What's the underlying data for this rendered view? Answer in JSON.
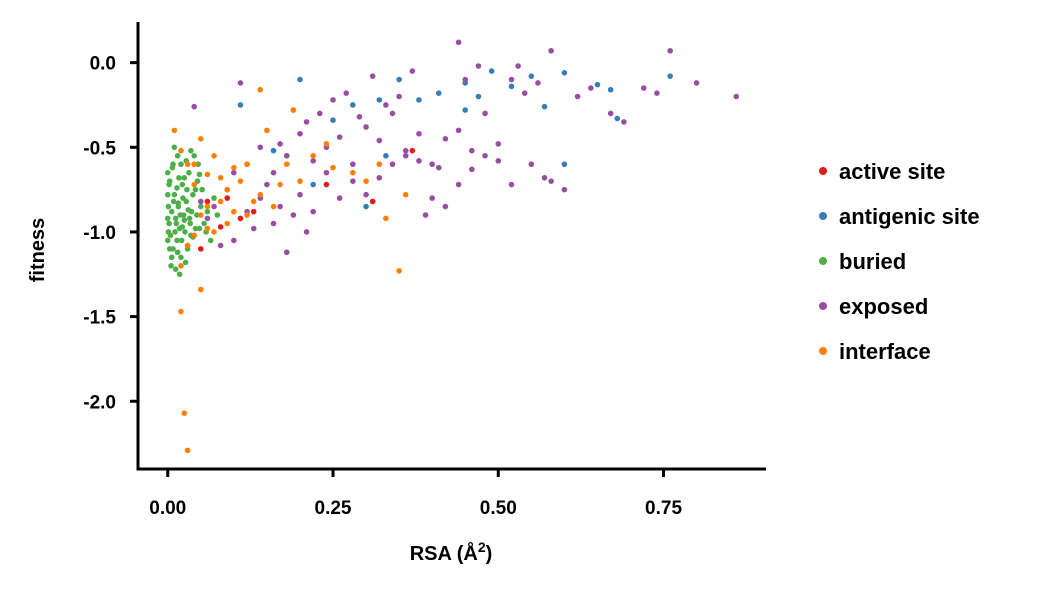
{
  "chart_data": {
    "type": "scatter",
    "xlabel": "RSA (Å",
    "xlabel_sup": "2",
    "xlabel_close": ")",
    "ylabel": "fitness",
    "xlim": [
      -0.045,
      0.905
    ],
    "ylim": [
      -2.4,
      0.24
    ],
    "xticks": [
      0.0,
      0.25,
      0.5,
      0.75
    ],
    "xtick_labels": [
      "0.00",
      "0.25",
      "0.50",
      "0.75"
    ],
    "yticks": [
      0.0,
      -0.5,
      -1.0,
      -1.5,
      -2.0
    ],
    "ytick_labels": [
      "0.0",
      "-0.5",
      "-1.0",
      "-1.5",
      "-2.0"
    ],
    "grid": false,
    "legend_position": "right",
    "series": [
      {
        "name": "active site",
        "color": "#e41a1c",
        "points": [
          [
            0.37,
            -0.52
          ],
          [
            0.31,
            -0.82
          ],
          [
            0.24,
            -0.72
          ],
          [
            0.05,
            -1.1
          ],
          [
            0.08,
            -0.97
          ],
          [
            0.06,
            -0.82
          ],
          [
            0.13,
            -0.88
          ],
          [
            0.11,
            -0.92
          ],
          [
            0.09,
            -0.8
          ]
        ]
      },
      {
        "name": "antigenic site",
        "color": "#377eb8",
        "points": [
          [
            0.11,
            -0.25
          ],
          [
            0.16,
            -0.52
          ],
          [
            0.22,
            -0.72
          ],
          [
            0.25,
            -0.34
          ],
          [
            0.28,
            -0.25
          ],
          [
            0.32,
            -0.22
          ],
          [
            0.35,
            -0.1
          ],
          [
            0.38,
            -0.22
          ],
          [
            0.41,
            -0.18
          ],
          [
            0.45,
            -0.12
          ],
          [
            0.47,
            -0.2
          ],
          [
            0.49,
            -0.05
          ],
          [
            0.52,
            -0.14
          ],
          [
            0.55,
            -0.08
          ],
          [
            0.57,
            -0.26
          ],
          [
            0.6,
            -0.06
          ],
          [
            0.65,
            -0.13
          ],
          [
            0.67,
            -0.16
          ],
          [
            0.68,
            -0.33
          ],
          [
            0.76,
            -0.08
          ],
          [
            0.3,
            -0.85
          ],
          [
            0.33,
            -0.55
          ],
          [
            0.6,
            -0.6
          ],
          [
            0.45,
            -0.28
          ],
          [
            0.2,
            -0.1
          ]
        ]
      },
      {
        "name": "buried",
        "color": "#4daf4a",
        "points": [
          [
            0.002,
            -0.95
          ],
          [
            0.004,
            -1.02
          ],
          [
            0.006,
            -0.88
          ],
          [
            0.008,
            -1.1
          ],
          [
            0.01,
            -0.78
          ],
          [
            0.012,
            -0.92
          ],
          [
            0.014,
            -1.05
          ],
          [
            0.016,
            -0.85
          ],
          [
            0.018,
            -0.98
          ],
          [
            0.02,
            -1.15
          ],
          [
            0.022,
            -0.72
          ],
          [
            0.024,
            -0.9
          ],
          [
            0.026,
            -1.0
          ],
          [
            0.028,
            -0.82
          ],
          [
            0.03,
            -1.08
          ],
          [
            0.032,
            -0.65
          ],
          [
            0.034,
            -0.95
          ],
          [
            0.036,
            -0.88
          ],
          [
            0.038,
            -1.03
          ],
          [
            0.04,
            -0.55
          ],
          [
            0.042,
            -0.75
          ],
          [
            0.044,
            -0.9
          ],
          [
            0.046,
            -0.6
          ],
          [
            0.048,
            -0.98
          ],
          [
            0.05,
            -0.85
          ],
          [
            0.003,
            -0.7
          ],
          [
            0.005,
            -1.2
          ],
          [
            0.007,
            -0.62
          ],
          [
            0.009,
            -0.82
          ],
          [
            0.011,
            -1.0
          ],
          [
            0.013,
            -0.95
          ],
          [
            0.015,
            -1.12
          ],
          [
            0.017,
            -0.68
          ],
          [
            0.019,
            -0.9
          ],
          [
            0.021,
            -1.05
          ],
          [
            0.023,
            -0.8
          ],
          [
            0.025,
            -0.93
          ],
          [
            0.027,
            -1.18
          ],
          [
            0.029,
            -0.75
          ],
          [
            0.031,
            -0.87
          ],
          [
            0.0,
            -0.78
          ],
          [
            0.0,
            -0.92
          ],
          [
            0.0,
            -1.05
          ],
          [
            0.0,
            -0.65
          ],
          [
            0.001,
            -0.85
          ],
          [
            0.001,
            -1.0
          ],
          [
            0.002,
            -0.72
          ],
          [
            0.003,
            -1.1
          ],
          [
            0.035,
            -0.52
          ],
          [
            0.045,
            -0.7
          ],
          [
            0.055,
            -0.95
          ],
          [
            0.06,
            -0.88
          ],
          [
            0.07,
            -0.8
          ],
          [
            0.065,
            -1.05
          ],
          [
            0.075,
            -0.9
          ],
          [
            0.02,
            -0.6
          ],
          [
            0.015,
            -0.55
          ],
          [
            0.012,
            -1.22
          ],
          [
            0.03,
            -1.1
          ],
          [
            0.025,
            -0.68
          ],
          [
            0.01,
            -0.5
          ],
          [
            0.038,
            -0.78
          ],
          [
            0.042,
            -0.98
          ],
          [
            0.018,
            -1.25
          ],
          [
            0.028,
            -0.58
          ],
          [
            0.033,
            -0.92
          ],
          [
            0.052,
            -0.75
          ],
          [
            0.058,
            -1.0
          ],
          [
            0.006,
            -1.15
          ],
          [
            0.014,
            -0.74
          ],
          [
            0.022,
            -0.97
          ],
          [
            0.035,
            -1.02
          ],
          [
            0.048,
            -0.66
          ],
          [
            0.008,
            -0.6
          ],
          [
            0.016,
            -0.83
          ]
        ]
      },
      {
        "name": "exposed",
        "color": "#984ea3",
        "points": [
          [
            0.04,
            -0.26
          ],
          [
            0.11,
            -0.12
          ],
          [
            0.14,
            -0.5
          ],
          [
            0.16,
            -0.65
          ],
          [
            0.18,
            -0.55
          ],
          [
            0.2,
            -0.42
          ],
          [
            0.22,
            -0.58
          ],
          [
            0.24,
            -0.5
          ],
          [
            0.26,
            -0.44
          ],
          [
            0.28,
            -0.6
          ],
          [
            0.3,
            -0.38
          ],
          [
            0.32,
            -0.46
          ],
          [
            0.34,
            -0.3
          ],
          [
            0.36,
            -0.55
          ],
          [
            0.38,
            -0.42
          ],
          [
            0.4,
            -0.6
          ],
          [
            0.42,
            -0.45
          ],
          [
            0.44,
            -0.4
          ],
          [
            0.46,
            -0.52
          ],
          [
            0.48,
            -0.3
          ],
          [
            0.5,
            -0.48
          ],
          [
            0.52,
            -0.1
          ],
          [
            0.54,
            -0.18
          ],
          [
            0.56,
            -0.12
          ],
          [
            0.58,
            -0.7
          ],
          [
            0.6,
            -0.75
          ],
          [
            0.62,
            -0.2
          ],
          [
            0.64,
            -0.15
          ],
          [
            0.67,
            -0.3
          ],
          [
            0.69,
            -0.35
          ],
          [
            0.72,
            -0.15
          ],
          [
            0.74,
            -0.18
          ],
          [
            0.76,
            0.07
          ],
          [
            0.8,
            -0.12
          ],
          [
            0.86,
            -0.2
          ],
          [
            0.44,
            0.12
          ],
          [
            0.58,
            0.07
          ],
          [
            0.31,
            -0.08
          ],
          [
            0.37,
            -0.05
          ],
          [
            0.45,
            -0.1
          ],
          [
            0.47,
            -0.02
          ],
          [
            0.53,
            -0.02
          ],
          [
            0.35,
            -0.2
          ],
          [
            0.27,
            -0.18
          ],
          [
            0.21,
            -0.35
          ],
          [
            0.15,
            -0.72
          ],
          [
            0.17,
            -0.85
          ],
          [
            0.19,
            -0.9
          ],
          [
            0.21,
            -1.0
          ],
          [
            0.13,
            -0.98
          ],
          [
            0.1,
            -1.05
          ],
          [
            0.12,
            -0.88
          ],
          [
            0.09,
            -0.75
          ],
          [
            0.07,
            -0.85
          ],
          [
            0.06,
            -0.92
          ],
          [
            0.08,
            -1.08
          ],
          [
            0.1,
            -0.65
          ],
          [
            0.12,
            -0.6
          ],
          [
            0.14,
            -0.8
          ],
          [
            0.16,
            -0.95
          ],
          [
            0.18,
            -1.12
          ],
          [
            0.2,
            -0.78
          ],
          [
            0.22,
            -0.88
          ],
          [
            0.24,
            -0.65
          ],
          [
            0.26,
            -0.8
          ],
          [
            0.28,
            -0.7
          ],
          [
            0.3,
            -0.78
          ],
          [
            0.32,
            -0.68
          ],
          [
            0.34,
            -0.6
          ],
          [
            0.36,
            -0.52
          ],
          [
            0.38,
            -0.58
          ],
          [
            0.4,
            -0.8
          ],
          [
            0.42,
            -0.85
          ],
          [
            0.44,
            -0.72
          ],
          [
            0.46,
            -0.63
          ],
          [
            0.48,
            -0.55
          ],
          [
            0.5,
            -0.58
          ],
          [
            0.52,
            -0.72
          ],
          [
            0.55,
            -0.6
          ],
          [
            0.57,
            -0.68
          ],
          [
            0.33,
            -0.25
          ],
          [
            0.29,
            -0.32
          ],
          [
            0.25,
            -0.22
          ],
          [
            0.23,
            -0.3
          ],
          [
            0.19,
            -0.28
          ],
          [
            0.17,
            -0.48
          ],
          [
            0.05,
            -0.82
          ],
          [
            0.39,
            -0.9
          ],
          [
            0.41,
            -0.62
          ]
        ]
      },
      {
        "name": "interface",
        "color": "#ff7f00",
        "points": [
          [
            0.03,
            -2.29
          ],
          [
            0.025,
            -2.07
          ],
          [
            0.02,
            -1.47
          ],
          [
            0.05,
            -1.34
          ],
          [
            0.35,
            -1.23
          ],
          [
            0.01,
            -0.4
          ],
          [
            0.02,
            -0.52
          ],
          [
            0.03,
            -0.6
          ],
          [
            0.04,
            -0.72
          ],
          [
            0.05,
            -0.45
          ],
          [
            0.06,
            -0.85
          ],
          [
            0.07,
            -0.55
          ],
          [
            0.08,
            -0.68
          ],
          [
            0.09,
            -0.75
          ],
          [
            0.1,
            -0.88
          ],
          [
            0.12,
            -0.6
          ],
          [
            0.14,
            -0.16
          ],
          [
            0.15,
            -0.4
          ],
          [
            0.17,
            -0.72
          ],
          [
            0.19,
            -0.28
          ],
          [
            0.2,
            -0.7
          ],
          [
            0.24,
            -0.48
          ],
          [
            0.28,
            -0.65
          ],
          [
            0.32,
            -0.6
          ],
          [
            0.04,
            -1.02
          ],
          [
            0.06,
            -0.98
          ],
          [
            0.08,
            -0.82
          ],
          [
            0.1,
            -0.62
          ],
          [
            0.12,
            -0.9
          ],
          [
            0.14,
            -0.78
          ],
          [
            0.16,
            -0.85
          ],
          [
            0.18,
            -0.6
          ],
          [
            0.22,
            -0.55
          ],
          [
            0.25,
            -0.62
          ],
          [
            0.3,
            -0.7
          ],
          [
            0.33,
            -0.92
          ],
          [
            0.36,
            -0.78
          ],
          [
            0.02,
            -1.2
          ],
          [
            0.03,
            -1.08
          ],
          [
            0.05,
            -0.9
          ],
          [
            0.07,
            -1.0
          ],
          [
            0.09,
            -0.95
          ],
          [
            0.11,
            -0.7
          ],
          [
            0.13,
            -0.82
          ],
          [
            0.04,
            -0.6
          ],
          [
            0.06,
            -0.66
          ]
        ]
      }
    ]
  }
}
